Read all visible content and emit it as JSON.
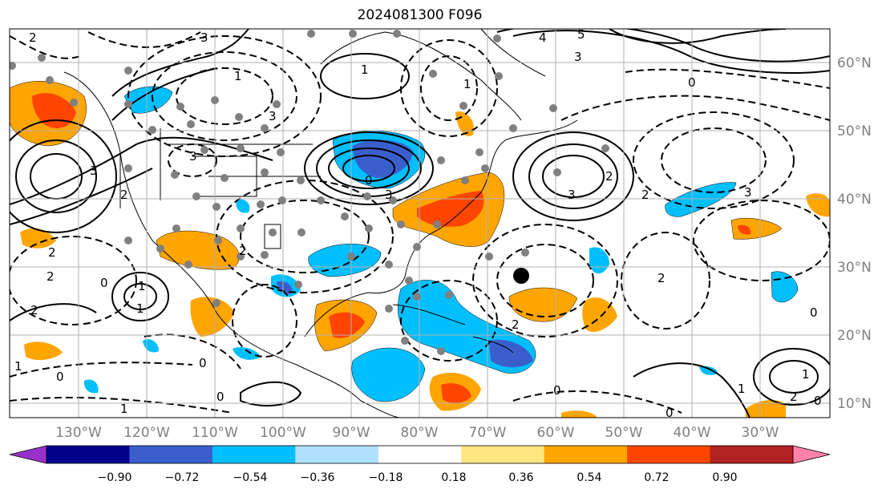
{
  "title": "2024081300 F096",
  "map": {
    "lat_labels": [
      "60°N",
      "50°N",
      "40°N",
      "30°N",
      "20°N",
      "10°N"
    ],
    "lon_labels": [
      "130°W",
      "120°W",
      "110°W",
      "100°W",
      "90°W",
      "80°W",
      "70°W",
      "60°W",
      "50°W",
      "40°W",
      "30°W"
    ],
    "contour_labels": [
      "3",
      "4",
      "5",
      "3",
      "1",
      "0",
      "3",
      "1",
      "1",
      "3",
      "3",
      "0",
      "2",
      "3",
      "2",
      "2",
      "2",
      "0",
      "0",
      "0",
      "1",
      "1",
      "2",
      "0",
      "2",
      "1",
      "2",
      "1",
      "1",
      "0",
      "1",
      "0",
      "2",
      "0",
      "3",
      "3",
      "2",
      "2",
      "0",
      "2"
    ]
  },
  "colorbar": {
    "ticks": [
      "−0.90",
      "−0.72",
      "−0.54",
      "−0.36",
      "−0.18",
      "0.18",
      "0.36",
      "0.54",
      "0.72",
      "0.90"
    ],
    "colors": [
      "#9932cc",
      "#00008b",
      "#3a5fcd",
      "#00bfff",
      "#b0e2ff",
      "#ffffff",
      "#ffe680",
      "#ffa500",
      "#ff4500",
      "#b22222",
      "#ff82ab"
    ],
    "extend_low_color": "#9932cc",
    "extend_high_color": "#ff82ab"
  },
  "colors": {
    "grid": "#b0b0b0",
    "station_marker": "#808080",
    "highlight_marker": "#000000"
  }
}
